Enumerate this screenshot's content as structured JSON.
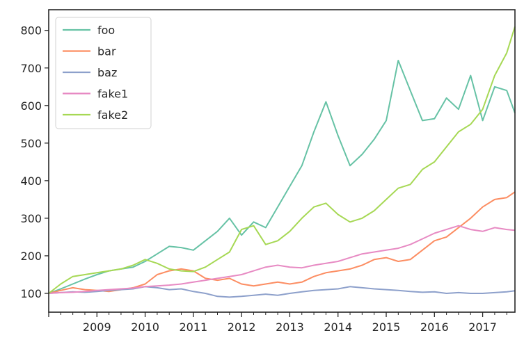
{
  "chart_data": {
    "type": "line",
    "title": "",
    "xlabel": "",
    "ylabel": "",
    "xlim": [
      2008.0,
      2017.67
    ],
    "ylim": [
      50,
      855
    ],
    "grid": false,
    "legend_position": "upper-left",
    "x_ticks": [
      2009,
      2010,
      2011,
      2012,
      2013,
      2014,
      2015,
      2016,
      2017
    ],
    "x_tick_labels": [
      "2009",
      "2010",
      "2011",
      "2012",
      "2013",
      "2014",
      "2015",
      "2016",
      "2017"
    ],
    "y_ticks": [
      100,
      200,
      300,
      400,
      500,
      600,
      700,
      800
    ],
    "y_tick_labels": [
      "100",
      "200",
      "300",
      "400",
      "500",
      "600",
      "700",
      "800"
    ],
    "x": [
      2008.0,
      2008.25,
      2008.5,
      2008.75,
      2009.0,
      2009.25,
      2009.5,
      2009.75,
      2010.0,
      2010.25,
      2010.5,
      2010.75,
      2011.0,
      2011.25,
      2011.5,
      2011.75,
      2012.0,
      2012.25,
      2012.5,
      2012.75,
      2013.0,
      2013.25,
      2013.5,
      2013.75,
      2014.0,
      2014.25,
      2014.5,
      2014.75,
      2015.0,
      2015.25,
      2015.5,
      2015.75,
      2016.0,
      2016.25,
      2016.5,
      2016.75,
      2017.0,
      2017.25,
      2017.5,
      2017.67
    ],
    "series": [
      {
        "name": "foo",
        "color": "#66c2a5",
        "values": [
          100,
          112,
          125,
          138,
          150,
          160,
          165,
          170,
          185,
          205,
          225,
          222,
          215,
          240,
          265,
          300,
          255,
          290,
          275,
          330,
          385,
          440,
          530,
          610,
          520,
          440,
          470,
          510,
          560,
          720,
          640,
          560,
          565,
          620,
          590,
          680,
          560,
          650,
          640,
          580
        ]
      },
      {
        "name": "bar",
        "color": "#fc8d62",
        "values": [
          100,
          108,
          115,
          110,
          108,
          105,
          110,
          115,
          125,
          150,
          160,
          165,
          160,
          140,
          135,
          140,
          125,
          120,
          125,
          130,
          125,
          130,
          145,
          155,
          160,
          165,
          175,
          190,
          195,
          185,
          190,
          215,
          240,
          250,
          275,
          300,
          330,
          350,
          355,
          370
        ]
      },
      {
        "name": "baz",
        "color": "#8da0cb",
        "values": [
          100,
          102,
          104,
          103,
          105,
          108,
          110,
          112,
          118,
          115,
          110,
          112,
          105,
          100,
          92,
          90,
          92,
          95,
          98,
          95,
          100,
          104,
          108,
          110,
          112,
          118,
          115,
          112,
          110,
          108,
          105,
          103,
          104,
          100,
          102,
          100,
          100,
          102,
          104,
          107
        ]
      },
      {
        "name": "fake1",
        "color": "#e78ac3",
        "values": [
          100,
          102,
          103,
          105,
          108,
          110,
          112,
          114,
          118,
          120,
          122,
          125,
          130,
          135,
          140,
          145,
          150,
          160,
          170,
          175,
          170,
          168,
          175,
          180,
          185,
          195,
          205,
          210,
          215,
          220,
          230,
          245,
          260,
          270,
          280,
          270,
          265,
          275,
          270,
          268
        ]
      },
      {
        "name": "fake2",
        "color": "#a6d854",
        "values": [
          100,
          125,
          145,
          150,
          155,
          160,
          165,
          175,
          190,
          180,
          165,
          160,
          158,
          170,
          190,
          210,
          270,
          280,
          230,
          240,
          265,
          300,
          330,
          340,
          310,
          290,
          300,
          320,
          350,
          380,
          390,
          430,
          450,
          490,
          530,
          550,
          590,
          680,
          740,
          810
        ]
      }
    ]
  }
}
